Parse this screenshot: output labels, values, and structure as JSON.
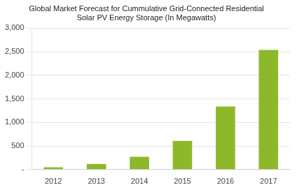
{
  "chart_data": {
    "type": "bar",
    "title": "Global Market Forecast for Cummulative Grid-Connected Residential\nSolar PV Energy Storage (In Megawatts)",
    "categories": [
      "2012",
      "2013",
      "2014",
      "2015",
      "2016",
      "2017"
    ],
    "values": [
      50,
      120,
      270,
      610,
      1340,
      2540
    ],
    "color": "#8DB82A",
    "ylim": [
      0,
      3000
    ],
    "yticks": [
      {
        "value": 0,
        "label": "-"
      },
      500,
      {
        "value": 1000,
        "label": "1,000"
      },
      {
        "value": 1500,
        "label": "1,500"
      },
      {
        "value": 2000,
        "label": "2,000"
      },
      {
        "value": 2500,
        "label": "2,500"
      },
      {
        "value": 3000,
        "label": "3,000"
      }
    ],
    "grid": true
  }
}
